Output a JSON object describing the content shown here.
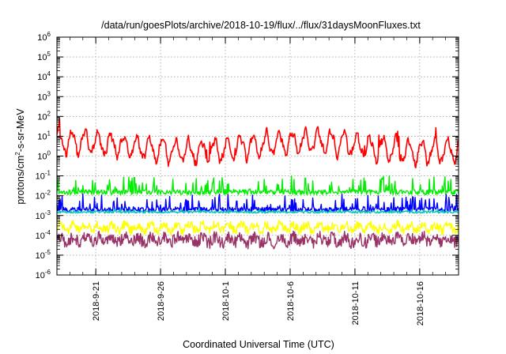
{
  "chart_data": {
    "type": "line",
    "title": "/data/run/goesPlots/archive/2018-10-19/flux/../flux/31daysMoonFluxes.txt",
    "xlabel": "Coordinated Universal Time (UTC)",
    "ylabel": {
      "base": "protons/cm",
      "exp": "2",
      "rest": "-s-sr-MeV"
    },
    "x_range": [
      "2018-09-18",
      "2018-10-19"
    ],
    "x_ticks": [
      "2018-9-21",
      "2018-9-26",
      "2018-10-1",
      "2018-10-6",
      "2018-10-11",
      "2018-10-16"
    ],
    "y_scale": "log",
    "y_range": [
      1e-06,
      1000000.0
    ],
    "y_ticks": [
      {
        "base": "10",
        "exp": "6"
      },
      {
        "base": "10",
        "exp": "5"
      },
      {
        "base": "10",
        "exp": "4"
      },
      {
        "base": "10",
        "exp": "3"
      },
      {
        "base": "10",
        "exp": "2"
      },
      {
        "base": "10",
        "exp": "1"
      },
      {
        "base": "10",
        "exp": "0"
      },
      {
        "base": "10",
        "exp": "-1"
      },
      {
        "base": "10",
        "exp": "-2"
      },
      {
        "base": "10",
        "exp": "-3"
      },
      {
        "base": "10",
        "exp": "-4"
      },
      {
        "base": "10",
        "exp": "-5"
      },
      {
        "base": "10",
        "exp": "-6"
      }
    ],
    "grid": true,
    "series": [
      {
        "color": "#ff0000",
        "approx_level": 3.0,
        "approx_min": 0.2,
        "approx_max": 80
      },
      {
        "color": "#00ee00",
        "approx_level": 0.015,
        "approx_min": 0.007,
        "approx_max": 0.1
      },
      {
        "color": "#0000ff",
        "approx_level": 0.002,
        "approx_min": 0.0012,
        "approx_max": 0.012
      },
      {
        "color": "#00c8b4",
        "approx_level": 0.0015,
        "approx_min": 0.0012,
        "approx_max": 0.003
      },
      {
        "color": "#ffff00",
        "approx_level": 0.00025,
        "approx_min": 0.0001,
        "approx_max": 0.0007
      },
      {
        "color": "#993366",
        "approx_level": 6e-05,
        "approx_min": 1.5e-05,
        "approx_max": 0.0002
      }
    ]
  }
}
